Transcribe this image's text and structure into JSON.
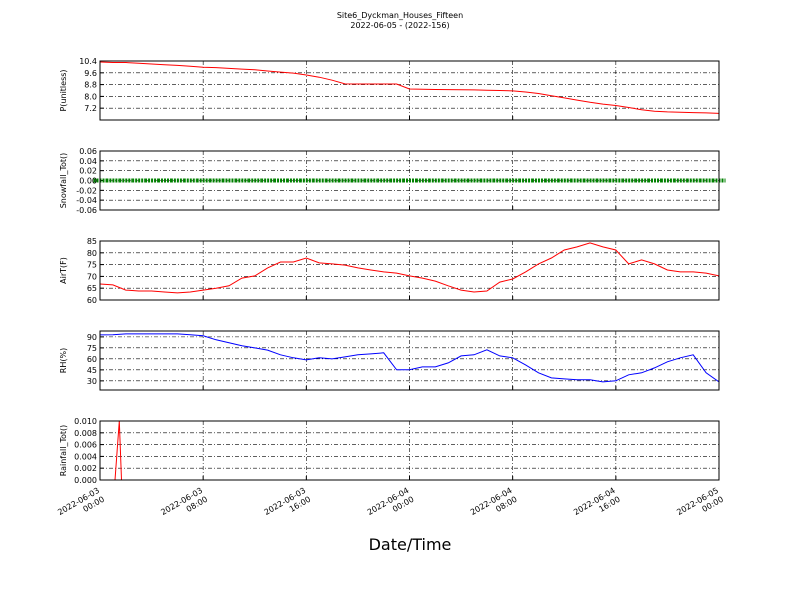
{
  "title": "Site6_Dyckman_Houses_Fifteen",
  "subtitle": "2022-06-05 - (2022-156)",
  "xlabel": "Date/Time",
  "xlim": [
    "2022-06-03 00:00",
    "2022-06-05 00:00"
  ],
  "xticks": [
    "2022-06-03 00:00",
    "2022-06-03 08:00",
    "2022-06-03 16:00",
    "2022-06-04 00:00",
    "2022-06-04 08:00",
    "2022-06-04 16:00",
    "2022-06-05 00:00"
  ],
  "x": [
    "2022-06-03 00:00",
    "2022-06-03 01:00",
    "2022-06-03 02:00",
    "2022-06-03 03:00",
    "2022-06-03 04:00",
    "2022-06-03 05:00",
    "2022-06-03 06:00",
    "2022-06-03 07:00",
    "2022-06-03 08:00",
    "2022-06-03 09:00",
    "2022-06-03 10:00",
    "2022-06-03 11:00",
    "2022-06-03 12:00",
    "2022-06-03 13:00",
    "2022-06-03 14:00",
    "2022-06-03 15:00",
    "2022-06-03 16:00",
    "2022-06-03 17:00",
    "2022-06-03 18:00",
    "2022-06-03 19:00",
    "2022-06-03 20:00",
    "2022-06-03 21:00",
    "2022-06-03 22:00",
    "2022-06-03 23:00",
    "2022-06-04 00:00",
    "2022-06-04 01:00",
    "2022-06-04 02:00",
    "2022-06-04 03:00",
    "2022-06-04 04:00",
    "2022-06-04 05:00",
    "2022-06-04 06:00",
    "2022-06-04 07:00",
    "2022-06-04 08:00",
    "2022-06-04 09:00",
    "2022-06-04 10:00",
    "2022-06-04 11:00",
    "2022-06-04 12:00",
    "2022-06-04 13:00",
    "2022-06-04 14:00",
    "2022-06-04 15:00",
    "2022-06-04 16:00",
    "2022-06-04 17:00",
    "2022-06-04 18:00",
    "2022-06-04 19:00",
    "2022-06-04 20:00",
    "2022-06-04 21:00",
    "2022-06-04 22:00",
    "2022-06-04 23:00",
    "2022-06-05 00:00"
  ],
  "chart_data": [
    {
      "type": "line",
      "ylabel": "P(unitless)",
      "ylim": [
        6.4,
        10.4
      ],
      "yticks": [
        7.2,
        {
          "value": 8,
          "label": "8.0"
        },
        8.8,
        9.6,
        10.4
      ],
      "grid": true,
      "series": [
        {
          "color": "#ff0000",
          "values": [
            10.33,
            10.3,
            10.3,
            10.25,
            10.2,
            10.15,
            10.1,
            10.05,
            9.98,
            9.95,
            9.9,
            9.85,
            9.8,
            9.72,
            9.65,
            9.58,
            9.45,
            9.3,
            9.1,
            8.85,
            8.84,
            8.84,
            8.84,
            8.84,
            8.5,
            8.48,
            8.47,
            8.46,
            8.45,
            8.44,
            8.42,
            8.4,
            8.37,
            8.3,
            8.2,
            8.05,
            7.9,
            7.75,
            7.6,
            7.48,
            7.38,
            7.25,
            7.1,
            7.0,
            6.95,
            6.92,
            6.9,
            6.88,
            6.85
          ]
        }
      ]
    },
    {
      "type": "scatter",
      "ylabel": "Snowfall_Tot()",
      "ylim": [
        -0.06,
        0.06
      ],
      "yticks": [
        -0.06,
        -0.04,
        -0.02,
        {
          "value": 0,
          "label": "0.00"
        },
        0.02,
        0.04,
        0.06
      ],
      "grid": true,
      "series": [
        {
          "color": "#008000",
          "values": [
            0,
            0,
            0,
            0,
            0,
            0,
            0,
            0,
            0,
            0,
            0,
            0,
            0,
            0,
            0,
            0,
            0,
            0,
            0,
            0,
            0,
            0,
            0,
            0,
            0,
            0,
            0,
            0,
            0,
            0,
            0,
            0,
            0,
            0,
            0,
            0,
            0,
            0,
            0,
            0,
            0,
            0,
            0,
            0,
            0,
            0,
            0,
            0,
            0
          ]
        }
      ]
    },
    {
      "type": "line",
      "ylabel": "AirT(F)",
      "ylim": [
        60,
        85
      ],
      "yticks": [
        60,
        65,
        70,
        75,
        80,
        85
      ],
      "grid": true,
      "series": [
        {
          "color": "#ff0000",
          "values": [
            66.8,
            66.4,
            64.2,
            63.8,
            63.8,
            63.4,
            63,
            63.4,
            64.2,
            65,
            66,
            69.3,
            70.2,
            73.6,
            76.1,
            76.1,
            77.8,
            75.7,
            75.3,
            74.8,
            73.6,
            72.7,
            71.9,
            71.4,
            70.2,
            69.3,
            68,
            66,
            64.2,
            63.4,
            63.8,
            67.6,
            68.9,
            71.9,
            75.3,
            77.8,
            81.2,
            82.5,
            84.2,
            82.5,
            81.2,
            75.3,
            77,
            75.3,
            72.7,
            71.9,
            71.9,
            71.4,
            70.2
          ]
        }
      ]
    },
    {
      "type": "line",
      "ylabel": "RH(%)",
      "ylim": [
        17.5,
        98
      ],
      "yticks": [
        30,
        45,
        60,
        75,
        90
      ],
      "grid": true,
      "series": [
        {
          "color": "#0000ff",
          "values": [
            92.7,
            93,
            94,
            94,
            94,
            94,
            94,
            93,
            91.4,
            86,
            82,
            78,
            75,
            72,
            65.5,
            61.4,
            58.6,
            61.4,
            60,
            62.7,
            65.5,
            66.8,
            68.2,
            45,
            45,
            49,
            49,
            54.5,
            64,
            65.5,
            72.3,
            64,
            61.4,
            51.8,
            40.9,
            34,
            32.7,
            31.4,
            31.4,
            28.6,
            30,
            38.2,
            41,
            47.7,
            56,
            61.4,
            65.5,
            41,
            28.6
          ]
        }
      ]
    },
    {
      "type": "line",
      "ylabel": "Rainfall_Tot()",
      "ylim": [
        0,
        0.01
      ],
      "yticks": [
        {
          "value": 0,
          "label": "0.000"
        },
        {
          "value": 0.002,
          "label": "0.002"
        },
        {
          "value": 0.004,
          "label": "0.004"
        },
        {
          "value": 0.006,
          "label": "0.006"
        },
        {
          "value": 0.008,
          "label": "0.008"
        },
        {
          "value": 0.01,
          "label": "0.010"
        }
      ],
      "grid": true,
      "x": [
        "2022-06-03 00:00",
        "2022-06-03 01:10",
        "2022-06-03 01:30",
        "2022-06-03 01:40",
        "2022-06-05 00:00"
      ],
      "series": [
        {
          "color": "#ff0000",
          "values": [
            0,
            0,
            0.01,
            0,
            0
          ]
        }
      ]
    }
  ]
}
